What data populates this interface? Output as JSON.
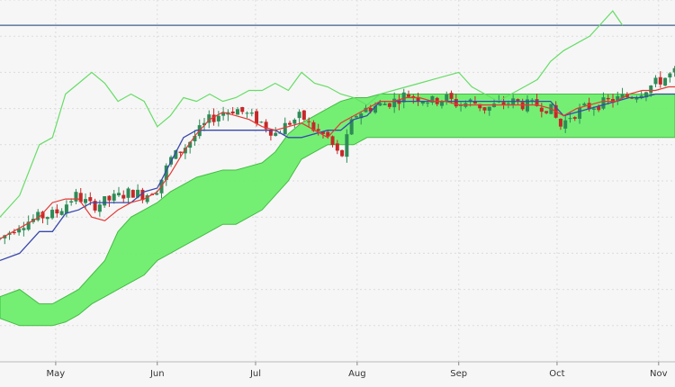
{
  "chart_data": {
    "type": "candlestick-ichimoku",
    "title": "",
    "xlabel": "",
    "ylabel": "",
    "x_ticks": [
      {
        "label": "May",
        "day": 31
      },
      {
        "label": "Jun",
        "day": 62
      },
      {
        "label": "Jul",
        "day": 92
      },
      {
        "label": "Aug",
        "day": 123
      },
      {
        "label": "Sep",
        "day": 154
      },
      {
        "label": "Oct",
        "day": 184
      },
      {
        "label": "Nov",
        "day": 215
      }
    ],
    "x_range": [
      14,
      220
    ],
    "y_range": [
      0,
      100
    ],
    "horizontal_line": 93,
    "grid": true,
    "colors": {
      "background": "#f6f6f6",
      "grid": "#dcdcdc",
      "bull": "#2e8b57",
      "bear": "#c62828",
      "tenkan": "#e53935",
      "kijun": "#3949ab",
      "chikou": "#66dd66",
      "cloud": "#66ee66",
      "cloud_edge": "#44bb44",
      "hline": "#3f5f8a"
    },
    "candle_anchors": [
      [
        14,
        34
      ],
      [
        20,
        38
      ],
      [
        26,
        40
      ],
      [
        31,
        41
      ],
      [
        37,
        46
      ],
      [
        42,
        43
      ],
      [
        48,
        45
      ],
      [
        54,
        47
      ],
      [
        58,
        46
      ],
      [
        62,
        48
      ],
      [
        66,
        56
      ],
      [
        70,
        59
      ],
      [
        74,
        63
      ],
      [
        78,
        67
      ],
      [
        82,
        69
      ],
      [
        86,
        70
      ],
      [
        90,
        68
      ],
      [
        94,
        66
      ],
      [
        98,
        63
      ],
      [
        102,
        66
      ],
      [
        106,
        68
      ],
      [
        110,
        64
      ],
      [
        114,
        62
      ],
      [
        118,
        56
      ],
      [
        122,
        68
      ],
      [
        126,
        70
      ],
      [
        130,
        71
      ],
      [
        134,
        72
      ],
      [
        138,
        74
      ],
      [
        142,
        73
      ],
      [
        146,
        72
      ],
      [
        150,
        73
      ],
      [
        154,
        71
      ],
      [
        158,
        72
      ],
      [
        162,
        70
      ],
      [
        166,
        71
      ],
      [
        170,
        72
      ],
      [
        174,
        71
      ],
      [
        178,
        71
      ],
      [
        182,
        70
      ],
      [
        185,
        65
      ],
      [
        188,
        68
      ],
      [
        192,
        70
      ],
      [
        196,
        71
      ],
      [
        200,
        72
      ],
      [
        204,
        73
      ],
      [
        208,
        74
      ],
      [
        212,
        76
      ],
      [
        216,
        78
      ],
      [
        220,
        80
      ]
    ],
    "tenkan": [
      [
        14,
        34
      ],
      [
        20,
        37
      ],
      [
        26,
        40
      ],
      [
        30,
        44
      ],
      [
        34,
        45
      ],
      [
        38,
        45
      ],
      [
        42,
        40
      ],
      [
        46,
        39
      ],
      [
        50,
        42
      ],
      [
        54,
        44
      ],
      [
        58,
        45
      ],
      [
        62,
        47
      ],
      [
        66,
        52
      ],
      [
        70,
        58
      ],
      [
        74,
        63
      ],
      [
        78,
        67
      ],
      [
        82,
        69
      ],
      [
        86,
        68
      ],
      [
        90,
        67
      ],
      [
        94,
        65
      ],
      [
        98,
        64
      ],
      [
        102,
        65
      ],
      [
        106,
        66
      ],
      [
        110,
        64
      ],
      [
        114,
        62
      ],
      [
        118,
        66
      ],
      [
        122,
        68
      ],
      [
        126,
        70
      ],
      [
        130,
        72
      ],
      [
        134,
        72
      ],
      [
        138,
        73
      ],
      [
        142,
        73
      ],
      [
        146,
        72
      ],
      [
        150,
        72
      ],
      [
        154,
        71
      ],
      [
        158,
        71
      ],
      [
        162,
        71
      ],
      [
        166,
        71
      ],
      [
        170,
        71
      ],
      [
        174,
        71
      ],
      [
        178,
        71
      ],
      [
        182,
        70
      ],
      [
        186,
        68
      ],
      [
        190,
        70
      ],
      [
        194,
        71
      ],
      [
        198,
        72
      ],
      [
        202,
        72
      ],
      [
        206,
        74
      ],
      [
        210,
        75
      ],
      [
        214,
        75
      ],
      [
        218,
        76
      ],
      [
        220,
        76
      ]
    ],
    "kijun": [
      [
        14,
        28
      ],
      [
        20,
        30
      ],
      [
        26,
        36
      ],
      [
        30,
        36
      ],
      [
        34,
        41
      ],
      [
        38,
        42
      ],
      [
        42,
        44
      ],
      [
        46,
        44
      ],
      [
        50,
        44
      ],
      [
        54,
        44
      ],
      [
        58,
        47
      ],
      [
        62,
        48
      ],
      [
        66,
        55
      ],
      [
        70,
        62
      ],
      [
        74,
        64
      ],
      [
        78,
        64
      ],
      [
        82,
        64
      ],
      [
        86,
        64
      ],
      [
        90,
        64
      ],
      [
        94,
        64
      ],
      [
        98,
        64
      ],
      [
        102,
        62
      ],
      [
        106,
        62
      ],
      [
        110,
        63
      ],
      [
        114,
        64
      ],
      [
        118,
        64
      ],
      [
        122,
        67
      ],
      [
        126,
        68
      ],
      [
        130,
        72
      ],
      [
        134,
        72
      ],
      [
        138,
        72
      ],
      [
        142,
        72
      ],
      [
        146,
        72
      ],
      [
        150,
        72
      ],
      [
        154,
        72
      ],
      [
        158,
        72
      ],
      [
        162,
        72
      ],
      [
        166,
        72
      ],
      [
        170,
        72
      ],
      [
        174,
        72
      ],
      [
        178,
        72
      ],
      [
        182,
        72
      ],
      [
        186,
        68
      ],
      [
        190,
        69
      ],
      [
        194,
        70
      ],
      [
        198,
        71
      ],
      [
        202,
        72
      ],
      [
        206,
        73
      ],
      [
        210,
        73
      ],
      [
        214,
        74
      ],
      [
        218,
        74
      ],
      [
        220,
        74
      ]
    ],
    "chikou": [
      [
        14,
        40
      ],
      [
        20,
        46
      ],
      [
        26,
        60
      ],
      [
        30,
        62
      ],
      [
        34,
        74
      ],
      [
        38,
        77
      ],
      [
        42,
        80
      ],
      [
        46,
        77
      ],
      [
        50,
        72
      ],
      [
        54,
        74
      ],
      [
        58,
        72
      ],
      [
        62,
        65
      ],
      [
        66,
        68
      ],
      [
        70,
        73
      ],
      [
        74,
        72
      ],
      [
        78,
        74
      ],
      [
        82,
        72
      ],
      [
        86,
        73
      ],
      [
        90,
        75
      ],
      [
        94,
        75
      ],
      [
        98,
        77
      ],
      [
        102,
        75
      ],
      [
        106,
        80
      ],
      [
        110,
        77
      ],
      [
        114,
        76
      ],
      [
        118,
        74
      ],
      [
        122,
        73
      ],
      [
        126,
        71
      ],
      [
        130,
        74
      ],
      [
        134,
        75
      ],
      [
        138,
        76
      ],
      [
        142,
        77
      ],
      [
        146,
        78
      ],
      [
        150,
        79
      ],
      [
        154,
        80
      ],
      [
        158,
        76
      ],
      [
        162,
        74
      ],
      [
        166,
        72
      ],
      [
        170,
        74
      ],
      [
        174,
        76
      ],
      [
        178,
        78
      ],
      [
        182,
        83
      ],
      [
        186,
        86
      ],
      [
        190,
        88
      ],
      [
        194,
        90
      ],
      [
        198,
        94
      ],
      [
        201,
        97
      ],
      [
        204,
        93
      ]
    ],
    "cloud_top": [
      [
        14,
        18
      ],
      [
        20,
        20
      ],
      [
        26,
        16
      ],
      [
        30,
        16
      ],
      [
        34,
        18
      ],
      [
        38,
        20
      ],
      [
        42,
        24
      ],
      [
        46,
        28
      ],
      [
        50,
        36
      ],
      [
        54,
        40
      ],
      [
        58,
        42
      ],
      [
        62,
        44
      ],
      [
        66,
        47
      ],
      [
        70,
        49
      ],
      [
        74,
        51
      ],
      [
        78,
        52
      ],
      [
        82,
        53
      ],
      [
        86,
        53
      ],
      [
        90,
        54
      ],
      [
        94,
        55
      ],
      [
        98,
        58
      ],
      [
        102,
        63
      ],
      [
        106,
        66
      ],
      [
        110,
        68
      ],
      [
        114,
        70
      ],
      [
        118,
        72
      ],
      [
        122,
        73
      ],
      [
        126,
        73
      ],
      [
        130,
        74
      ],
      [
        134,
        74
      ],
      [
        138,
        74
      ],
      [
        142,
        74
      ],
      [
        146,
        74
      ],
      [
        150,
        74
      ],
      [
        154,
        74
      ],
      [
        158,
        74
      ],
      [
        162,
        74
      ],
      [
        166,
        74
      ],
      [
        170,
        74
      ],
      [
        174,
        74
      ],
      [
        178,
        74
      ],
      [
        182,
        74
      ],
      [
        186,
        74
      ],
      [
        190,
        74
      ],
      [
        194,
        74
      ],
      [
        198,
        74
      ],
      [
        202,
        74
      ],
      [
        206,
        74
      ],
      [
        210,
        74
      ],
      [
        214,
        74
      ],
      [
        218,
        74
      ],
      [
        220,
        74
      ]
    ],
    "cloud_bottom": [
      [
        14,
        12
      ],
      [
        20,
        10
      ],
      [
        26,
        10
      ],
      [
        30,
        10
      ],
      [
        34,
        11
      ],
      [
        38,
        13
      ],
      [
        42,
        16
      ],
      [
        46,
        18
      ],
      [
        50,
        20
      ],
      [
        54,
        22
      ],
      [
        58,
        24
      ],
      [
        62,
        28
      ],
      [
        66,
        30
      ],
      [
        70,
        32
      ],
      [
        74,
        34
      ],
      [
        78,
        36
      ],
      [
        82,
        38
      ],
      [
        86,
        38
      ],
      [
        90,
        40
      ],
      [
        94,
        42
      ],
      [
        98,
        46
      ],
      [
        102,
        50
      ],
      [
        106,
        56
      ],
      [
        110,
        58
      ],
      [
        114,
        60
      ],
      [
        118,
        60
      ],
      [
        122,
        60
      ],
      [
        126,
        62
      ],
      [
        130,
        62
      ],
      [
        134,
        62
      ],
      [
        138,
        62
      ],
      [
        142,
        62
      ],
      [
        146,
        62
      ],
      [
        150,
        62
      ],
      [
        154,
        62
      ],
      [
        158,
        62
      ],
      [
        162,
        62
      ],
      [
        166,
        62
      ],
      [
        170,
        62
      ],
      [
        174,
        62
      ],
      [
        178,
        62
      ],
      [
        182,
        62
      ],
      [
        186,
        62
      ],
      [
        190,
        62
      ],
      [
        194,
        62
      ],
      [
        198,
        62
      ],
      [
        202,
        62
      ],
      [
        206,
        62
      ],
      [
        210,
        62
      ],
      [
        214,
        62
      ],
      [
        218,
        62
      ],
      [
        220,
        62
      ]
    ]
  }
}
